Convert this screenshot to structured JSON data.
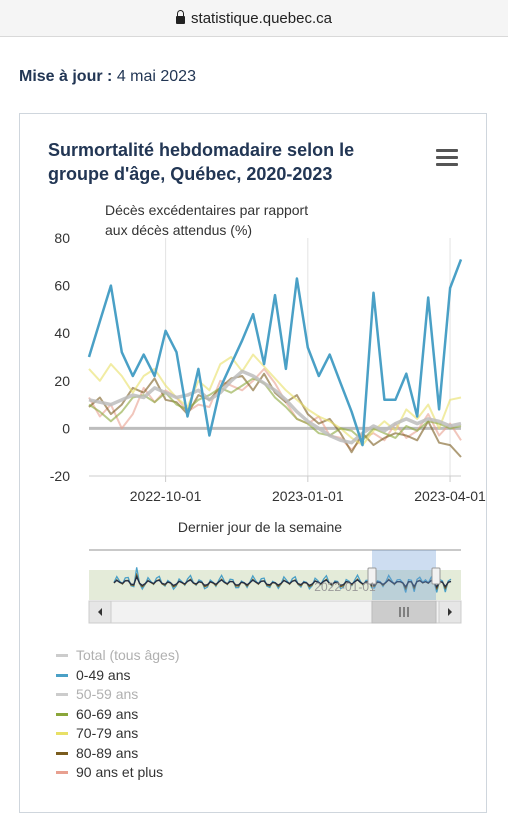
{
  "browser": {
    "url": "statistique.quebec.ca"
  },
  "update": {
    "label": "Mise à jour :",
    "date": "4 mai 2023"
  },
  "chart_data": {
    "type": "line",
    "title": "Surmortalité hebdomadaire selon le groupe d'âge, Québec, 2020-2023",
    "ylabel_line1": "Décès excédentaires par rapport",
    "ylabel_line2": "aux décès attendus (%)",
    "xlabel": "Dernier jour de la semaine",
    "ylim": [
      -20,
      80
    ],
    "yticks": [
      "80",
      "60",
      "40",
      "20",
      "0",
      "-20"
    ],
    "xticks": [
      {
        "label": "2022-10-01",
        "week": 7
      },
      {
        "label": "2023-01-01",
        "week": 20
      },
      {
        "label": "2023-04-01",
        "week": 33
      }
    ],
    "navigator_label": "2022-01-01",
    "series": [
      {
        "name": "Total (tous âges)",
        "color": "#1f2d4a",
        "visible": false
      },
      {
        "name": "0-49 ans",
        "color": "#4aa0c6",
        "visible": true,
        "values": [
          30,
          45,
          60,
          32,
          22,
          31,
          22,
          41,
          32,
          5,
          25,
          -3,
          17,
          27,
          37,
          48,
          27,
          56,
          25,
          63,
          34,
          22,
          31,
          19,
          7,
          -7,
          57,
          12,
          12,
          23,
          5,
          55,
          8,
          59,
          71
        ]
      },
      {
        "name": "50-59 ans",
        "color": "#bdbdbd",
        "visible": false,
        "values": [
          12,
          11,
          10,
          12,
          14,
          13,
          17,
          15,
          13,
          14,
          16,
          12,
          15,
          20,
          24,
          22,
          19,
          16,
          12,
          7,
          3,
          0,
          -3,
          -5,
          -6,
          -2,
          1,
          -1,
          2,
          4,
          2,
          4,
          3,
          1,
          2
        ]
      },
      {
        "name": "60-69 ans",
        "color": "#8aa63a",
        "visible": true,
        "values": [
          10,
          7,
          3,
          7,
          13,
          14,
          11,
          15,
          10,
          8,
          12,
          14,
          17,
          15,
          18,
          21,
          19,
          13,
          9,
          4,
          2,
          -2,
          -3,
          0,
          -1,
          -5,
          0,
          -2,
          -4,
          1,
          -1,
          3,
          2,
          0,
          1
        ]
      },
      {
        "name": "70-79 ans",
        "color": "#e8e066",
        "visible": true,
        "values": [
          25,
          20,
          27,
          22,
          15,
          22,
          25,
          18,
          13,
          9,
          20,
          16,
          27,
          30,
          24,
          31,
          26,
          21,
          16,
          12,
          8,
          5,
          3,
          0,
          -4,
          -7,
          -1,
          3,
          -1,
          8,
          4,
          10,
          0,
          12,
          13
        ]
      },
      {
        "name": "80-89 ans",
        "color": "#7a5c1e",
        "visible": true,
        "values": [
          9,
          13,
          6,
          10,
          17,
          15,
          21,
          12,
          11,
          6,
          14,
          12,
          17,
          21,
          22,
          16,
          23,
          15,
          11,
          14,
          6,
          2,
          4,
          -2,
          -10,
          -2,
          -7,
          -4,
          -2,
          -3,
          -5,
          3,
          -6,
          -7,
          -12
        ]
      },
      {
        "name": "90 ans et plus",
        "color": "#e8a090",
        "visible": true,
        "values": [
          13,
          5,
          10,
          0,
          6,
          17,
          11,
          16,
          13,
          7,
          10,
          9,
          20,
          18,
          16,
          20,
          25,
          19,
          11,
          4,
          2,
          5,
          -3,
          -4,
          -9,
          -4,
          -2,
          -5,
          2,
          -4,
          -1,
          6,
          -3,
          2,
          -5
        ]
      }
    ],
    "grid": "vertical",
    "legend_position": "bottom"
  }
}
